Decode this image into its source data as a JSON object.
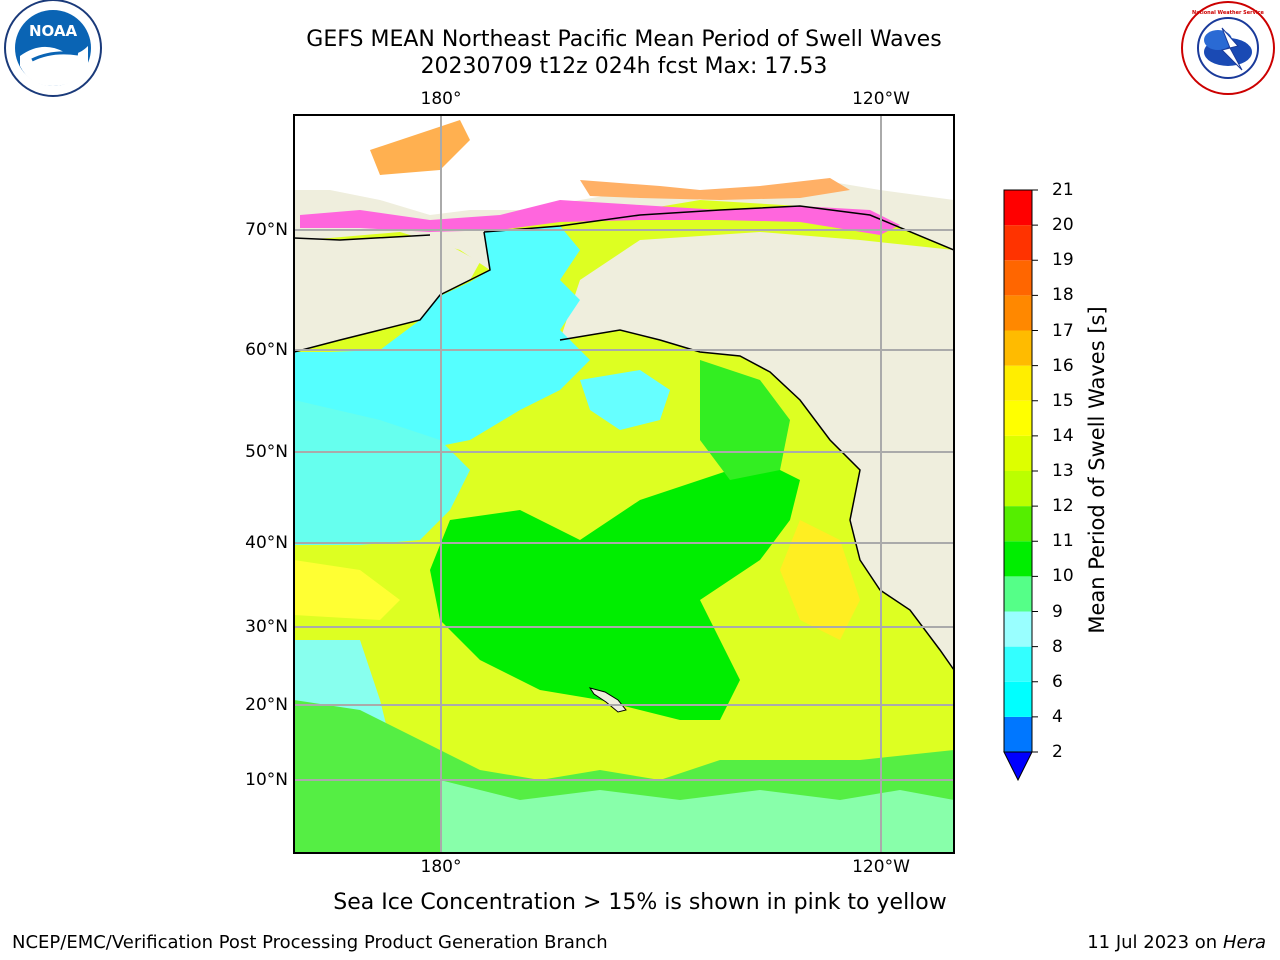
{
  "title_line1": "GEFS MEAN Northeast Pacific Mean Period of Swell Waves",
  "title_line2": "20230709 t12z 024h fcst   Max: 17.53",
  "logos": {
    "left": "NOAA",
    "right": "National Weather Service"
  },
  "lon_labels": [
    "180°",
    "120°W"
  ],
  "lat_labels": [
    "70°N",
    "60°N",
    "50°N",
    "40°N",
    "30°N",
    "20°N",
    "10°N"
  ],
  "colorbar": {
    "title": "Mean Period of Swell Waves [s]",
    "ticks": [
      "2",
      "4",
      "6",
      "8",
      "9",
      "10",
      "11",
      "12",
      "13",
      "14",
      "15",
      "16",
      "17",
      "18",
      "19",
      "20",
      "21"
    ],
    "colors": [
      "#0077ff",
      "#00ffff",
      "#33ffff",
      "#99ffff",
      "#55ff88",
      "#00ee00",
      "#55ee00",
      "#bbff00",
      "#ddff00",
      "#ffff00",
      "#ffee00",
      "#ffbb00",
      "#ff8800",
      "#ff6600",
      "#ff3300",
      "#ff0000"
    ],
    "extend_color": "#0000ff"
  },
  "caption": "Sea Ice Concentration > 15% is shown in pink to yellow",
  "footer_left": "NCEP/EMC/Verification Post Processing Product Generation Branch",
  "footer_right_main": "11 Jul 2023 on ",
  "footer_right_italic": "Hera"
}
